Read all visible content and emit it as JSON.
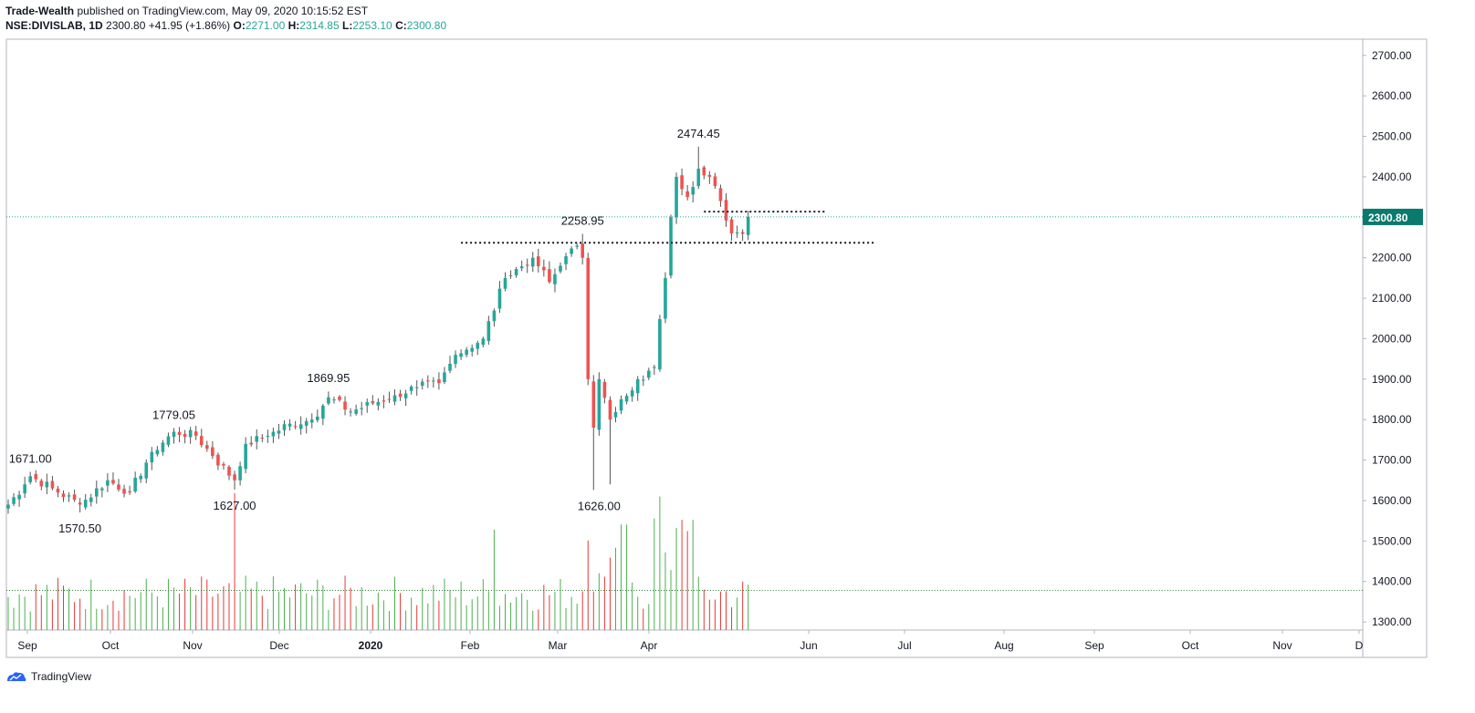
{
  "header": {
    "author": "Trade-Wealth",
    "published_text": "published on TradingView.com, May 09, 2020 10:15:52 EST",
    "symbol": "NSE:DIVISLAB, 1D",
    "last": "2300.80",
    "change": "+41.95 (+1.86%)",
    "o_label": "O:",
    "o_value": "2271.00",
    "h_label": "H:",
    "h_value": "2314.85",
    "l_label": "L:",
    "l_value": "2253.10",
    "c_label": "C:",
    "c_value": "2300.80"
  },
  "footer": {
    "brand": "TradingView"
  },
  "colors": {
    "up": "#26a69a",
    "down": "#ef5350",
    "vol_up": "#4caf50",
    "vol_down": "#e53935",
    "price_line": "#26a69a",
    "last_tag": "#0b7a6e"
  },
  "chart_data": {
    "type": "candlestick",
    "y_ticks": [
      "2700.00",
      "2600.00",
      "2500.00",
      "2400.00",
      "2300.00",
      "2200.00",
      "2100.00",
      "2000.00",
      "1900.00",
      "1800.00",
      "1700.00",
      "1600.00",
      "1500.00",
      "1400.00",
      "1300.00"
    ],
    "ylim": [
      1280,
      2740
    ],
    "x_labels": [
      "Sep",
      "Oct",
      "Nov",
      "Dec",
      "2020",
      "Feb",
      "Mar",
      "Apr",
      "Jun",
      "Jul",
      "Aug",
      "Sep",
      "Oct",
      "Nov",
      "D"
    ],
    "last_price": 2300.8,
    "last_price_label": "2300.80",
    "annotations": [
      {
        "text": "1671.00",
        "price": 1671.0,
        "bar": 4,
        "pos": "above"
      },
      {
        "text": "1570.50",
        "price": 1570.5,
        "bar": 13,
        "pos": "below"
      },
      {
        "text": "1779.05",
        "price": 1779.05,
        "bar": 30,
        "pos": "above"
      },
      {
        "text": "1627.00",
        "price": 1627.0,
        "bar": 41,
        "pos": "below"
      },
      {
        "text": "1869.95",
        "price": 1869.95,
        "bar": 58,
        "pos": "above"
      },
      {
        "text": "2258.95",
        "price": 2258.95,
        "bar": 104,
        "pos": "above"
      },
      {
        "text": "1626.00",
        "price": 1626.0,
        "bar": 107,
        "pos": "below"
      },
      {
        "text": "2474.45",
        "price": 2474.45,
        "bar": 125,
        "pos": "above"
      }
    ],
    "levels": [
      {
        "price": 2237,
        "from_bar": 82,
        "to_bar": 157
      },
      {
        "price": 2314,
        "from_bar": 126,
        "to_bar": 148
      }
    ],
    "volume_line_price_level": 1378,
    "anchors": [
      {
        "i": 0,
        "c": 1590
      },
      {
        "i": 3,
        "c": 1640
      },
      {
        "i": 4,
        "c": 1660
      },
      {
        "i": 8,
        "c": 1630
      },
      {
        "i": 13,
        "c": 1590
      },
      {
        "i": 18,
        "c": 1650
      },
      {
        "i": 22,
        "c": 1620
      },
      {
        "i": 26,
        "c": 1720
      },
      {
        "i": 30,
        "c": 1770
      },
      {
        "i": 34,
        "c": 1760
      },
      {
        "i": 37,
        "c": 1710
      },
      {
        "i": 41,
        "c": 1650
      },
      {
        "i": 43,
        "c": 1740
      },
      {
        "i": 47,
        "c": 1760
      },
      {
        "i": 51,
        "c": 1790
      },
      {
        "i": 55,
        "c": 1800
      },
      {
        "i": 58,
        "c": 1855
      },
      {
        "i": 62,
        "c": 1820
      },
      {
        "i": 66,
        "c": 1840
      },
      {
        "i": 70,
        "c": 1860
      },
      {
        "i": 74,
        "c": 1880
      },
      {
        "i": 78,
        "c": 1890
      },
      {
        "i": 81,
        "c": 1960
      },
      {
        "i": 86,
        "c": 2000
      },
      {
        "i": 90,
        "c": 2150
      },
      {
        "i": 95,
        "c": 2200
      },
      {
        "i": 98,
        "c": 2140
      },
      {
        "i": 100,
        "c": 2180
      },
      {
        "i": 103,
        "c": 2230
      },
      {
        "i": 104,
        "c": 2200
      },
      {
        "i": 105,
        "c": 1900
      },
      {
        "i": 106,
        "c": 1780
      },
      {
        "i": 107,
        "c": 1900
      },
      {
        "i": 109,
        "c": 1800
      },
      {
        "i": 111,
        "c": 1850
      },
      {
        "i": 114,
        "c": 1900
      },
      {
        "i": 117,
        "c": 1930
      },
      {
        "i": 119,
        "c": 2150
      },
      {
        "i": 120,
        "c": 2300
      },
      {
        "i": 121,
        "c": 2400
      },
      {
        "i": 123,
        "c": 2350
      },
      {
        "i": 125,
        "c": 2420
      },
      {
        "i": 127,
        "c": 2400
      },
      {
        "i": 129,
        "c": 2340
      },
      {
        "i": 131,
        "c": 2260
      },
      {
        "i": 133,
        "c": 2259
      },
      {
        "i": 134,
        "c": 2300.8
      }
    ]
  }
}
